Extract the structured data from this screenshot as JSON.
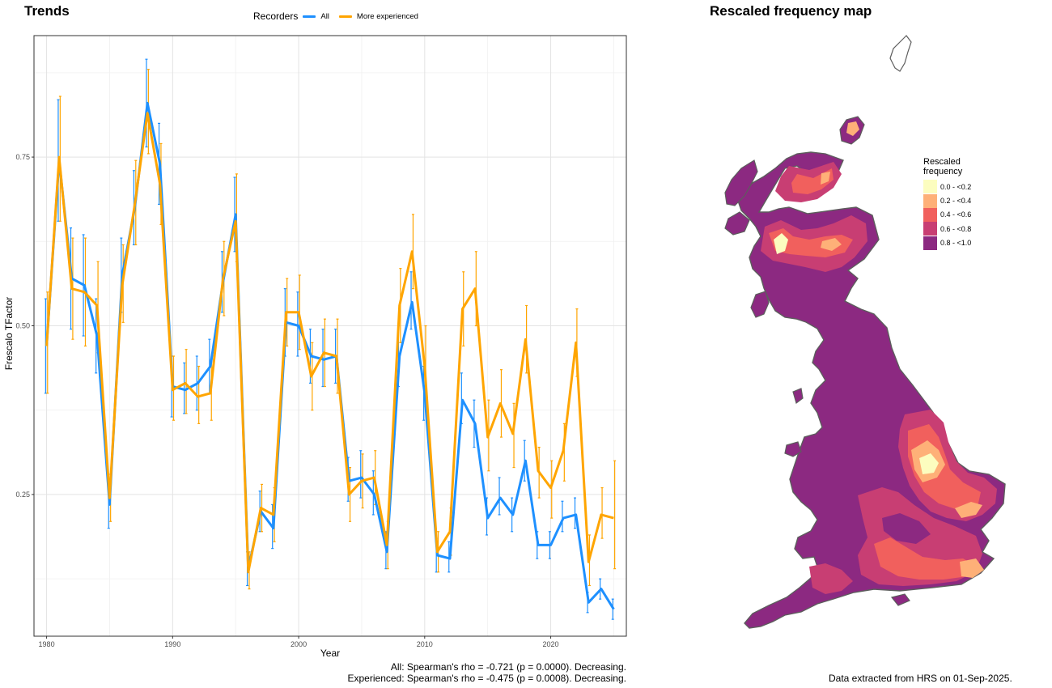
{
  "trends_title": "Trends",
  "map_title": "Rescaled frequency map",
  "legend": {
    "title": "Recorders",
    "items": [
      {
        "label": "All",
        "color": "#1e90ff"
      },
      {
        "label": "More experienced",
        "color": "#ffa500"
      }
    ]
  },
  "captions": {
    "all": "All: Spearman's rho = -0.721 (p = 0.0000). Decreasing.",
    "experienced": "Experienced: Spearman's rho = -0.475 (p = 0.0008). Decreasing.",
    "extracted": "Data extracted from HRS on 01-Sep-2025."
  },
  "map_legend": {
    "title_line1": "Rescaled",
    "title_line2": "frequency",
    "classes": [
      {
        "label": "0.0 - <0.2",
        "color": "#fcfdbf"
      },
      {
        "label": "0.2 - <0.4",
        "color": "#feb078"
      },
      {
        "label": "0.4 - <0.6",
        "color": "#f1605d"
      },
      {
        "label": "0.6 - <0.8",
        "color": "#c83e73"
      },
      {
        "label": "0.8 - <1.0",
        "color": "#8c2981"
      }
    ]
  },
  "chart_data": {
    "type": "line",
    "title": "Trends",
    "xlabel": "Year",
    "ylabel": "Frescalo TFactor",
    "xlim": [
      1979,
      2026
    ],
    "ylim": [
      0.04,
      0.93
    ],
    "xticks": [
      1980,
      1990,
      2000,
      2010,
      2020
    ],
    "yticks": [
      0.25,
      0.5,
      0.75
    ],
    "ytick_labels": [
      "0.25",
      "0.50",
      "0.75"
    ],
    "grid": true,
    "legend_position": "top",
    "x": [
      1980,
      1981,
      1982,
      1983,
      1984,
      1985,
      1986,
      1987,
      1988,
      1989,
      1990,
      1991,
      1992,
      1993,
      1994,
      1995,
      1996,
      1997,
      1998,
      1999,
      2000,
      2001,
      2002,
      2003,
      2004,
      2005,
      2006,
      2007,
      2008,
      2009,
      2010,
      2011,
      2012,
      2013,
      2014,
      2015,
      2016,
      2017,
      2018,
      2019,
      2020,
      2021,
      2022,
      2023,
      2024,
      2025
    ],
    "series": [
      {
        "name": "All",
        "color": "#1e90ff",
        "values": [
          0.47,
          0.745,
          0.57,
          0.56,
          0.485,
          0.235,
          0.575,
          0.675,
          0.83,
          0.74,
          0.41,
          0.405,
          0.415,
          0.44,
          0.565,
          0.665,
          0.14,
          0.225,
          0.2,
          0.505,
          0.5,
          0.455,
          0.45,
          0.455,
          0.27,
          0.275,
          0.25,
          0.165,
          0.455,
          0.535,
          0.4,
          0.16,
          0.155,
          0.39,
          0.355,
          0.215,
          0.245,
          0.22,
          0.3,
          0.175,
          0.175,
          0.215,
          0.22,
          0.09,
          0.11,
          0.08
        ],
        "lower": [
          0.4,
          0.655,
          0.495,
          0.485,
          0.43,
          0.2,
          0.52,
          0.62,
          0.765,
          0.68,
          0.365,
          0.37,
          0.375,
          0.4,
          0.52,
          0.61,
          0.115,
          0.195,
          0.17,
          0.455,
          0.455,
          0.415,
          0.41,
          0.415,
          0.24,
          0.245,
          0.22,
          0.14,
          0.41,
          0.495,
          0.36,
          0.135,
          0.135,
          0.355,
          0.32,
          0.19,
          0.22,
          0.195,
          0.27,
          0.155,
          0.155,
          0.195,
          0.2,
          0.075,
          0.095,
          0.065
        ],
        "upper": [
          0.54,
          0.835,
          0.645,
          0.635,
          0.54,
          0.27,
          0.63,
          0.73,
          0.895,
          0.8,
          0.455,
          0.445,
          0.455,
          0.48,
          0.61,
          0.72,
          0.165,
          0.255,
          0.235,
          0.555,
          0.55,
          0.495,
          0.495,
          0.495,
          0.305,
          0.315,
          0.285,
          0.195,
          0.5,
          0.58,
          0.44,
          0.185,
          0.18,
          0.43,
          0.39,
          0.245,
          0.275,
          0.245,
          0.33,
          0.195,
          0.195,
          0.24,
          0.245,
          0.105,
          0.125,
          0.095
        ]
      },
      {
        "name": "More experienced",
        "color": "#ffa500",
        "values": [
          0.47,
          0.75,
          0.555,
          0.55,
          0.53,
          0.245,
          0.56,
          0.68,
          0.815,
          0.71,
          0.405,
          0.415,
          0.395,
          0.4,
          0.57,
          0.655,
          0.135,
          0.23,
          0.22,
          0.52,
          0.52,
          0.425,
          0.46,
          0.455,
          0.25,
          0.27,
          0.275,
          0.175,
          0.53,
          0.61,
          0.44,
          0.165,
          0.195,
          0.525,
          0.555,
          0.335,
          0.385,
          0.34,
          0.48,
          0.285,
          0.26,
          0.315,
          0.475,
          0.15,
          0.22,
          0.215
        ],
        "lower": [
          0.4,
          0.655,
          0.48,
          0.47,
          0.46,
          0.21,
          0.505,
          0.62,
          0.755,
          0.65,
          0.36,
          0.37,
          0.355,
          0.36,
          0.515,
          0.595,
          0.11,
          0.195,
          0.18,
          0.47,
          0.465,
          0.375,
          0.41,
          0.4,
          0.21,
          0.23,
          0.235,
          0.14,
          0.475,
          0.555,
          0.38,
          0.135,
          0.16,
          0.47,
          0.5,
          0.285,
          0.335,
          0.29,
          0.43,
          0.245,
          0.215,
          0.27,
          0.425,
          0.115,
          0.185,
          0.14
        ],
        "upper": [
          0.55,
          0.84,
          0.63,
          0.63,
          0.595,
          0.28,
          0.62,
          0.745,
          0.88,
          0.77,
          0.455,
          0.465,
          0.44,
          0.45,
          0.625,
          0.725,
          0.165,
          0.265,
          0.26,
          0.57,
          0.575,
          0.475,
          0.51,
          0.51,
          0.29,
          0.31,
          0.315,
          0.21,
          0.585,
          0.665,
          0.5,
          0.195,
          0.23,
          0.58,
          0.61,
          0.39,
          0.435,
          0.385,
          0.53,
          0.32,
          0.3,
          0.355,
          0.525,
          0.19,
          0.26,
          0.3
        ]
      }
    ]
  }
}
